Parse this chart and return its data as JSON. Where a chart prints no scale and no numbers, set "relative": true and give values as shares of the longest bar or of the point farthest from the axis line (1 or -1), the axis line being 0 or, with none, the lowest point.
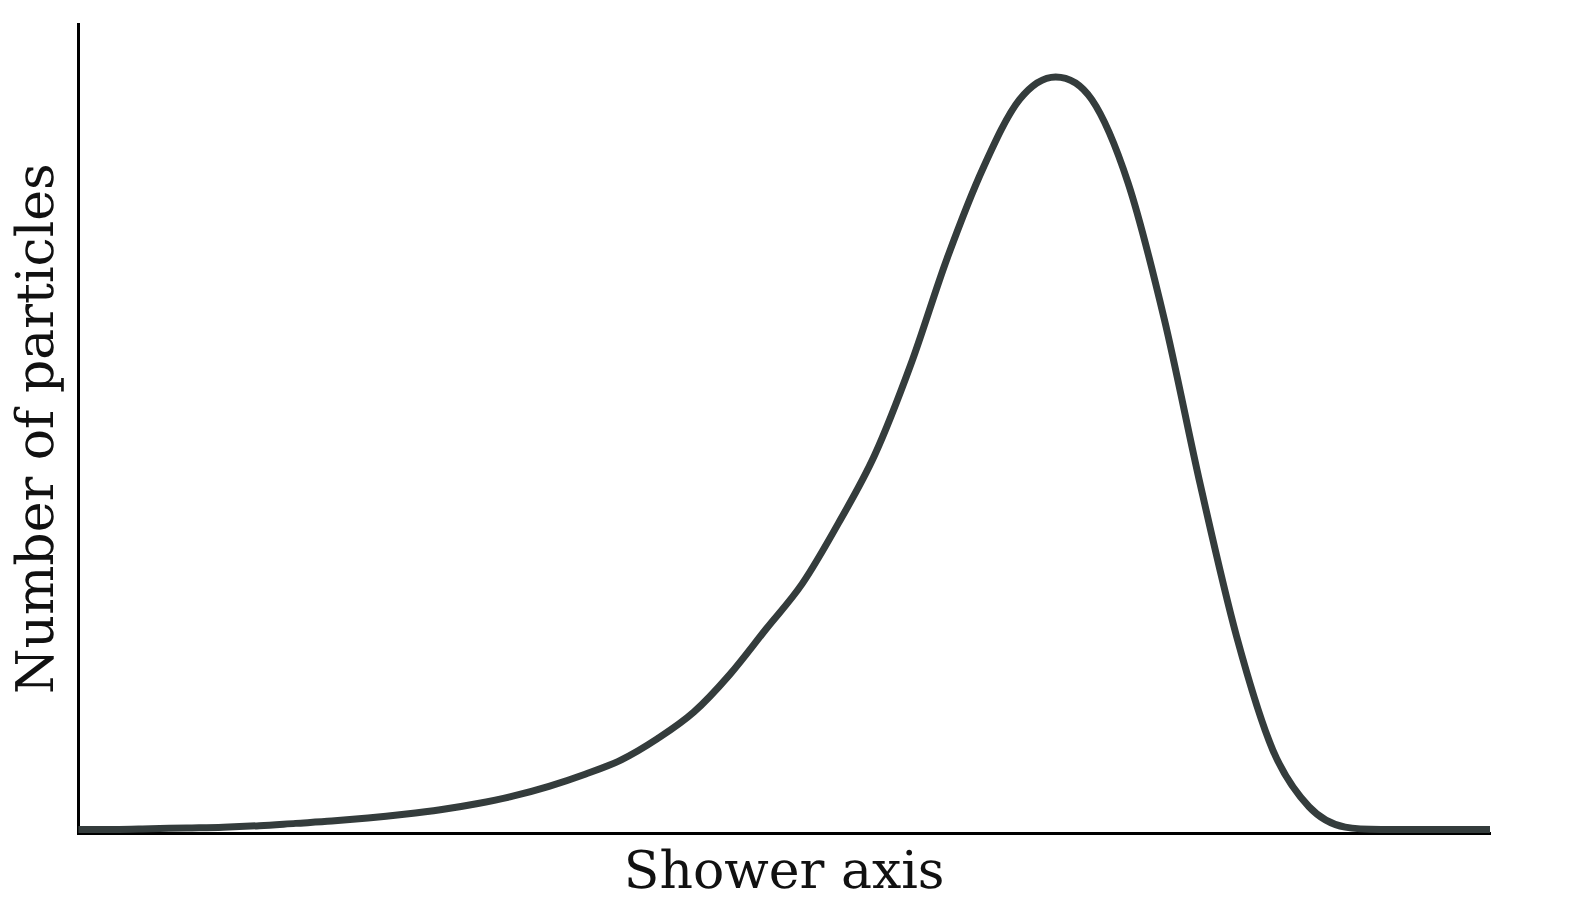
{
  "chart_data": {
    "type": "line",
    "relative": true,
    "xlabel": "Shower axis",
    "ylabel": "Number of particles",
    "color": "#343c3c",
    "marker": "none",
    "grid": false,
    "legend": false,
    "categories": [
      null,
      null,
      null,
      null,
      null,
      null,
      null,
      null,
      null,
      null,
      null,
      null,
      null,
      null,
      null,
      null,
      null,
      null,
      null,
      null,
      null,
      null,
      null,
      null,
      null,
      null,
      null,
      null,
      null,
      null,
      null,
      null,
      null,
      null,
      null,
      null,
      null,
      null,
      null,
      null
    ],
    "values": [
      0.005,
      0.005,
      0.006,
      0.007,
      0.008,
      0.01,
      0.013,
      0.016,
      0.02,
      0.025,
      0.031,
      0.039,
      0.049,
      0.062,
      0.078,
      0.097,
      0.125,
      0.16,
      0.21,
      0.27,
      0.33,
      0.41,
      0.5,
      0.62,
      0.76,
      0.88,
      0.97,
      1.0,
      0.97,
      0.86,
      0.68,
      0.46,
      0.26,
      0.11,
      0.035,
      0.008,
      0.005,
      0.005,
      0.005,
      0.005
    ]
  }
}
